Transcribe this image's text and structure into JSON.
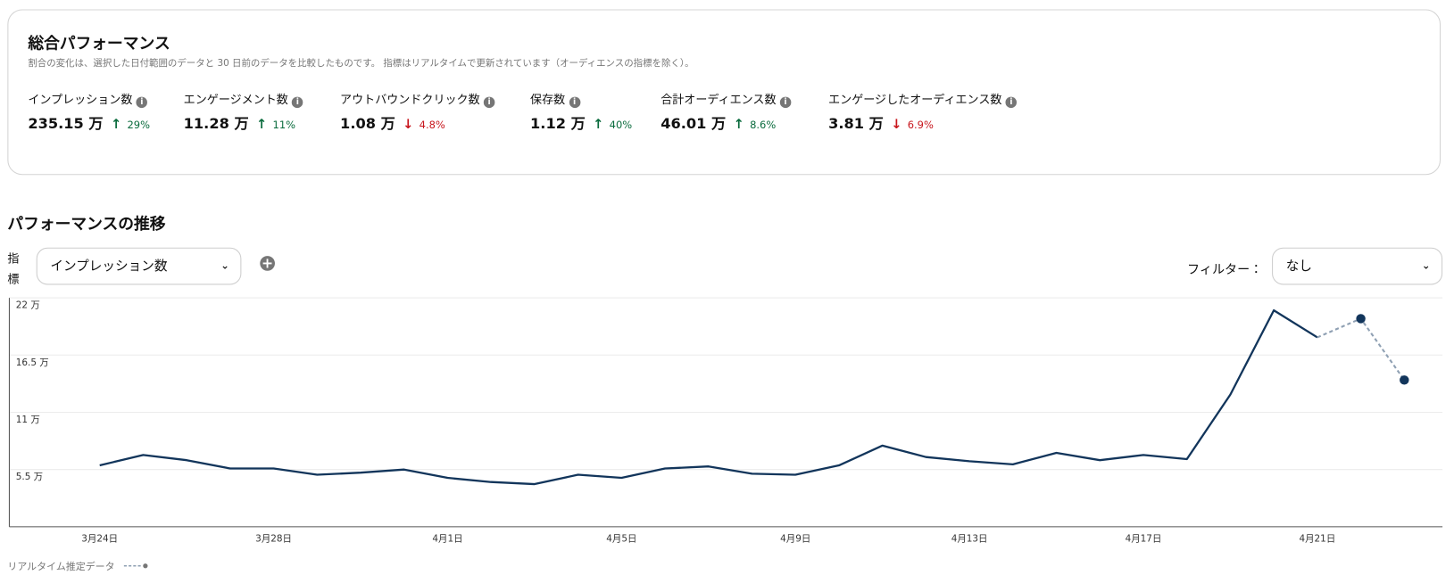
{
  "overview": {
    "title": "総合パフォーマンス",
    "subtitle": "割合の変化は、選択した日付範囲のデータと 30 日前のデータを比較したものです。 指標はリアルタイムで更新されています（オーディエンスの指標を除く）。",
    "metrics": [
      {
        "label": "インプレッション数",
        "value": "235.15 万",
        "change": "29%",
        "direction": "up"
      },
      {
        "label": "エンゲージメント数",
        "value": "11.28 万",
        "change": "11%",
        "direction": "up"
      },
      {
        "label": "アウトバウンドクリック数",
        "value": "1.08 万",
        "change": "4.8%",
        "direction": "down"
      },
      {
        "label": "保存数",
        "value": "1.12 万",
        "change": "40%",
        "direction": "up"
      },
      {
        "label": "合計オーディエンス数",
        "value": "46.01 万",
        "change": "8.6%",
        "direction": "up"
      },
      {
        "label": "エンゲージしたオーディエンス数",
        "value": "3.81 万",
        "change": "6.9%",
        "direction": "down"
      }
    ]
  },
  "section_title": "パフォーマンスの推移",
  "metric_label": "指標",
  "metric_select": "インプレッション数",
  "filter_label": "フィルター：",
  "filter_value": "なし",
  "chart_data": {
    "type": "line",
    "categories": [
      "3月24日",
      null,
      null,
      null,
      "3月28日",
      null,
      null,
      null,
      "4月1日",
      null,
      null,
      null,
      "4月5日",
      null,
      null,
      null,
      "4月9日",
      null,
      null,
      null,
      "4月13日",
      null,
      null,
      null,
      "4月17日",
      null,
      null,
      null,
      "4月21日",
      null,
      null
    ],
    "series": [
      {
        "color": "#12355b",
        "values": [
          5.9,
          6.9,
          6.4,
          5.6,
          5.6,
          5.0,
          5.2,
          5.5,
          4.7,
          4.3,
          4.1,
          5.0,
          4.7,
          5.6,
          5.8,
          5.1,
          5.0,
          5.9,
          7.8,
          6.7,
          6.3,
          6.0,
          7.1,
          6.4,
          6.9,
          6.5,
          12.7,
          20.8,
          18.2,
          null,
          null
        ]
      },
      {
        "name": "リアルタイム推定データ",
        "color": "#8fa0b3",
        "dashed": true,
        "values": [
          null,
          null,
          null,
          null,
          null,
          null,
          null,
          null,
          null,
          null,
          null,
          null,
          null,
          null,
          null,
          null,
          null,
          null,
          null,
          null,
          null,
          null,
          null,
          null,
          null,
          null,
          null,
          null,
          18.2,
          20.0,
          14.1
        ]
      }
    ],
    "ylim": [
      0,
      22
    ],
    "yticks": [
      {
        "value": 5.5,
        "label": "5.5 万"
      },
      {
        "value": 11,
        "label": "11 万"
      },
      {
        "value": 16.5,
        "label": "16.5 万"
      },
      {
        "value": 22,
        "label": "22 万"
      }
    ],
    "grid": true
  }
}
